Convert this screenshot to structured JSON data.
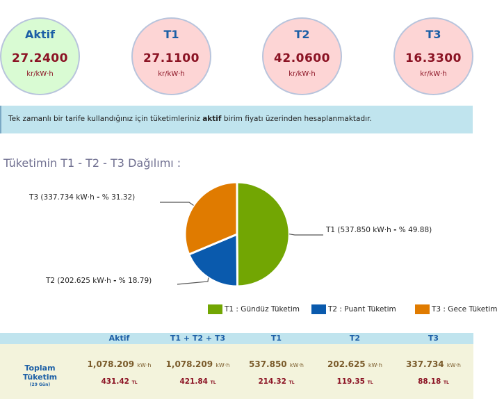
{
  "rates": [
    {
      "title": "Aktif",
      "value": "27.2400",
      "unit": "kr/kW·h"
    },
    {
      "title": "T1",
      "value": "27.1100",
      "unit": "kr/kW·h"
    },
    {
      "title": "T2",
      "value": "42.0600",
      "unit": "kr/kW·h"
    },
    {
      "title": "T3",
      "value": "16.3300",
      "unit": "kr/kW·h"
    }
  ],
  "info": {
    "before": "Tek zamanlı bir tarife kullandığınız için tüketimleriniz ",
    "bold": "aktif",
    "after": " birim fiyatı üzerinden hesaplanmaktadır."
  },
  "section_title": "Tüketimin T1 - T2 - T3 Dağılımı :",
  "chart_data": {
    "type": "pie",
    "slices": [
      {
        "name": "T1",
        "kwh": 537.85,
        "percent": 49.88,
        "color": "#72a603",
        "label_pre": "T1 (537.850 kW·h ",
        "label_bold": "-",
        "label_post": " % 49.88)"
      },
      {
        "name": "T2",
        "kwh": 202.625,
        "percent": 18.79,
        "color": "#0a5aad",
        "label_pre": "T2 (202.625 kW·h ",
        "label_bold": "-",
        "label_post": " % 18.79)"
      },
      {
        "name": "T3",
        "kwh": 337.734,
        "percent": 31.32,
        "color": "#e07b00",
        "label_pre": "T3 (337.734 kW·h ",
        "label_bold": "-",
        "label_post": " % 31.32)"
      }
    ],
    "legend": [
      {
        "label": "T1 : Gündüz Tüketim",
        "color": "#72a603"
      },
      {
        "label": "T2 : Puant Tüketim",
        "color": "#0a5aad"
      },
      {
        "label": "T3 : Gece Tüketim",
        "color": "#e07b00"
      }
    ],
    "legend_position": "bottom"
  },
  "table": {
    "headers": [
      "Aktif",
      "T1 + T2 + T3",
      "T1",
      "T2",
      "T3"
    ],
    "row_label": [
      "Toplam",
      "Tüketim",
      "(29 Gün)"
    ],
    "kwh": [
      "1,078.209",
      "1,078.209",
      "537.850",
      "202.625",
      "337.734"
    ],
    "kwh_unit": "kW·h",
    "tl": [
      "431.42",
      "421.84",
      "214.32",
      "119.35",
      "88.18"
    ],
    "tl_unit": "TL"
  }
}
